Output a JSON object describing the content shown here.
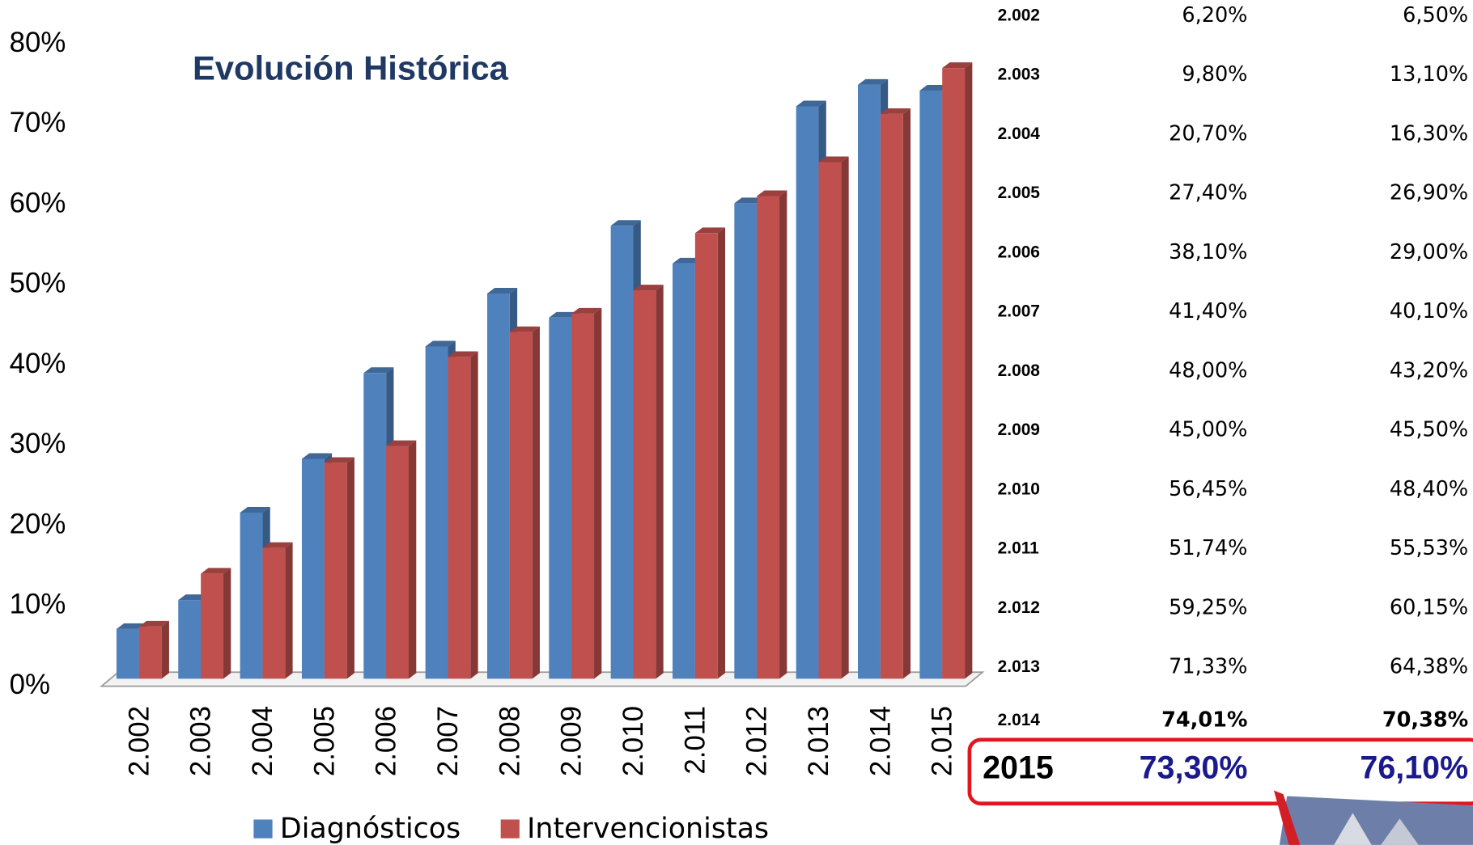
{
  "chart_data": {
    "type": "bar3d",
    "title": "Evolución Histórica",
    "categories": [
      "2.002",
      "2.003",
      "2.004",
      "2.005",
      "2.006",
      "2.007",
      "2.008",
      "2.009",
      "2.010",
      "2.011",
      "2.012",
      "2.013",
      "2.014",
      "2.015"
    ],
    "series": [
      {
        "name": "Diagnósticos",
        "color": "#4f81bd",
        "values": [
          6.2,
          9.8,
          20.7,
          27.4,
          38.1,
          41.4,
          48.0,
          45.0,
          56.45,
          51.74,
          59.25,
          71.33,
          74.01,
          73.3
        ]
      },
      {
        "name": "Intervencionistas",
        "color": "#c0504d",
        "values": [
          6.5,
          13.1,
          16.3,
          26.9,
          29.0,
          40.1,
          43.2,
          45.5,
          48.4,
          55.53,
          60.15,
          64.38,
          70.38,
          76.1
        ]
      }
    ],
    "ylim": [
      0,
      80
    ],
    "yticks": [
      {
        "value": 0,
        "label": "0%"
      },
      {
        "value": 10,
        "label": "10%"
      },
      {
        "value": 20,
        "label": "20%"
      },
      {
        "value": 30,
        "label": "30%"
      },
      {
        "value": 40,
        "label": "40%"
      },
      {
        "value": 50,
        "label": "50%"
      },
      {
        "value": 60,
        "label": "60%"
      },
      {
        "value": 70,
        "label": "70%"
      },
      {
        "value": 80,
        "label": "80%"
      }
    ],
    "grid": false,
    "legend": "bottom"
  },
  "table": {
    "rows": [
      [
        "2.002",
        "6,20%",
        "6,50%"
      ],
      [
        "2.003",
        "9,80%",
        "13,10%"
      ],
      [
        "2.004",
        "20,70%",
        "16,30%"
      ],
      [
        "2.005",
        "27,40%",
        "26,90%"
      ],
      [
        "2.006",
        "38,10%",
        "29,00%"
      ],
      [
        "2.007",
        "41,40%",
        "40,10%"
      ],
      [
        "2.008",
        "48,00%",
        "43,20%"
      ],
      [
        "2.009",
        "45,00%",
        "45,50%"
      ],
      [
        "2.010",
        "56,45%",
        "48,40%"
      ],
      [
        "2.011",
        "51,74%",
        "55,53%"
      ],
      [
        "2.012",
        "59,25%",
        "60,15%"
      ],
      [
        "2.013",
        "71,33%",
        "64,38%"
      ],
      [
        "2.014",
        "74,01%",
        "70,38%"
      ],
      [
        "2015",
        "73,30%",
        "76,10%"
      ]
    ]
  }
}
